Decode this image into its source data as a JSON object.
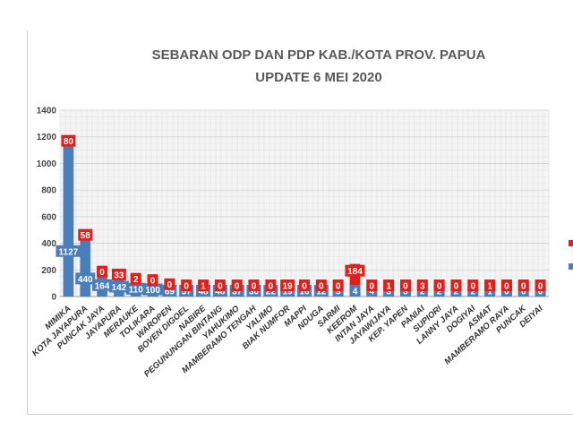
{
  "chart_data": {
    "type": "bar",
    "title_line1": "SEBARAN ODP DAN PDP KAB./KOTA PROV. PAPUA",
    "title_line2": "UPDATE 6 MEI 2020",
    "xlabel": "",
    "ylabel": "",
    "ylim": [
      0,
      1400
    ],
    "yticks": [
      "0",
      "200",
      "400",
      "600",
      "800",
      "1000",
      "1200",
      "1400"
    ],
    "grid": true,
    "stacked": true,
    "legend_position": "right",
    "categories": [
      "MIMIKA",
      "KOTA JAYAPURA",
      "PUNCAK JAYA",
      "JAYAPURA",
      "MERAUKE",
      "TOLIKARA",
      "WAROPEN",
      "BOVEN DIGOEL",
      "NABIRE",
      "PEGUNUNGAN BINTANG",
      "YAHUKIMO",
      "MAMBERAMO TENGAH",
      "YALIMO",
      "BIAK NUMFOR",
      "MAPPI",
      "NDUGA",
      "SARMI",
      "KEEROM",
      "INTAN JAYA",
      "JAYAWIJAYA",
      "KEP. YAPEN",
      "PANIAI",
      "SUPIORI",
      "LANNY JAYA",
      "DOGIYAI",
      "ASMAT",
      "MAMBERAMO RAYA",
      "PUNCAK",
      "DEIYAI"
    ],
    "series": [
      {
        "color": "#4a7ebb",
        "values": [
          1127,
          440,
          164,
          142,
          110,
          100,
          69,
          57,
          48,
          48,
          37,
          30,
          22,
          19,
          16,
          12,
          5,
          4,
          4,
          3,
          3,
          2,
          2,
          2,
          2,
          1,
          0,
          0,
          0
        ]
      },
      {
        "color": "#e0201b",
        "values": [
          80,
          58,
          0,
          33,
          2,
          0,
          0,
          0,
          1,
          0,
          0,
          0,
          0,
          19,
          0,
          0,
          0,
          184,
          0,
          1,
          0,
          3,
          0,
          0,
          0,
          1,
          0,
          0,
          0
        ]
      }
    ]
  }
}
